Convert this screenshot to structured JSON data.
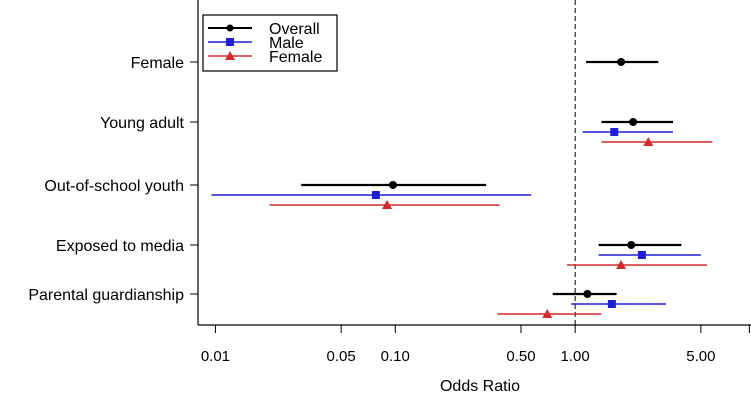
{
  "chart_data": {
    "type": "forest",
    "title": "",
    "xlabel": "Odds Ratio",
    "ylabel": "",
    "x_scale": "log",
    "xlim": [
      0.008,
      9.5
    ],
    "reference_line": 1.0,
    "xticks": [
      {
        "value": 0.01,
        "label": "0.01"
      },
      {
        "value": 0.05,
        "label": "0.05"
      },
      {
        "value": 0.1,
        "label": "0.10"
      },
      {
        "value": 0.5,
        "label": "0.50"
      },
      {
        "value": 1.0,
        "label": "1.00"
      },
      {
        "value": 5.0,
        "label": "5.00"
      }
    ],
    "categories": [
      "Female",
      "Young adult",
      "Out-of-school youth",
      "Exposed to media",
      "Parental guardianship"
    ],
    "legend": {
      "position": "top-left",
      "entries": [
        "Overall",
        "Male",
        "Female"
      ]
    },
    "series": [
      {
        "name": "Overall",
        "color": "#000000",
        "marker": "circle",
        "points": [
          {
            "category": "Female",
            "estimate": 1.8,
            "lower": 1.15,
            "upper": 2.9
          },
          {
            "category": "Young adult",
            "estimate": 2.1,
            "lower": 1.4,
            "upper": 3.5
          },
          {
            "category": "Out-of-school youth",
            "estimate": 0.097,
            "lower": 0.03,
            "upper": 0.32
          },
          {
            "category": "Exposed to media",
            "estimate": 2.05,
            "lower": 1.35,
            "upper": 3.9
          },
          {
            "category": "Parental guardianship",
            "estimate": 1.17,
            "lower": 0.75,
            "upper": 1.7
          }
        ]
      },
      {
        "name": "Male",
        "color": "#1f1fd6",
        "marker": "square",
        "points": [
          {
            "category": "Young adult",
            "estimate": 1.65,
            "lower": 1.1,
            "upper": 3.5
          },
          {
            "category": "Out-of-school youth",
            "estimate": 0.078,
            "lower": 0.0095,
            "upper": 0.57
          },
          {
            "category": "Exposed to media",
            "estimate": 2.35,
            "lower": 1.35,
            "upper": 5.0
          },
          {
            "category": "Parental guardianship",
            "estimate": 1.6,
            "lower": 0.95,
            "upper": 3.2
          }
        ]
      },
      {
        "name": "Female",
        "color": "#d42a2a",
        "marker": "triangle",
        "points": [
          {
            "category": "Young adult",
            "estimate": 2.55,
            "lower": 1.4,
            "upper": 5.8
          },
          {
            "category": "Out-of-school youth",
            "estimate": 0.09,
            "lower": 0.02,
            "upper": 0.38
          },
          {
            "category": "Exposed to media",
            "estimate": 1.8,
            "lower": 0.9,
            "upper": 5.4
          },
          {
            "category": "Parental guardianship",
            "estimate": 0.7,
            "lower": 0.37,
            "upper": 1.4
          }
        ]
      }
    ]
  }
}
